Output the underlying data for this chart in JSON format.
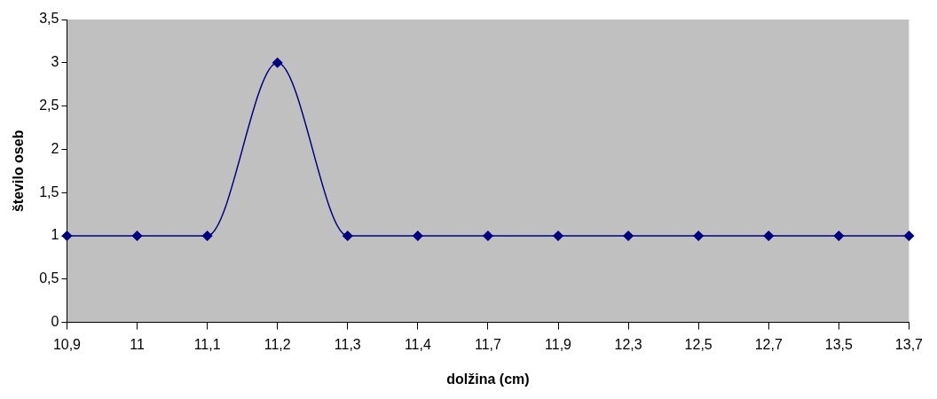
{
  "chart_data": {
    "type": "line",
    "xlabel": "dolžina (cm)",
    "ylabel": "število oseb",
    "categories": [
      "10,9",
      "11",
      "11,1",
      "11,2",
      "11,3",
      "11,4",
      "11,7",
      "11,9",
      "12,3",
      "12,5",
      "12,7",
      "13,5",
      "13,7"
    ],
    "series": [
      {
        "color": "#000080",
        "values": [
          1,
          1,
          1,
          3,
          1,
          1,
          1,
          1,
          1,
          1,
          1,
          1,
          1
        ]
      }
    ],
    "ylim": [
      0,
      3.5
    ],
    "yticks": [
      0,
      {
        "value": 0.5,
        "label": "0,5"
      },
      1,
      {
        "value": 1.5,
        "label": "1,5"
      },
      2,
      {
        "value": 2.5,
        "label": "2,5"
      },
      3,
      {
        "value": 3.5,
        "label": "3,5"
      }
    ],
    "grid": false,
    "legend": false,
    "marker": "diamond",
    "line_style": "solid"
  }
}
